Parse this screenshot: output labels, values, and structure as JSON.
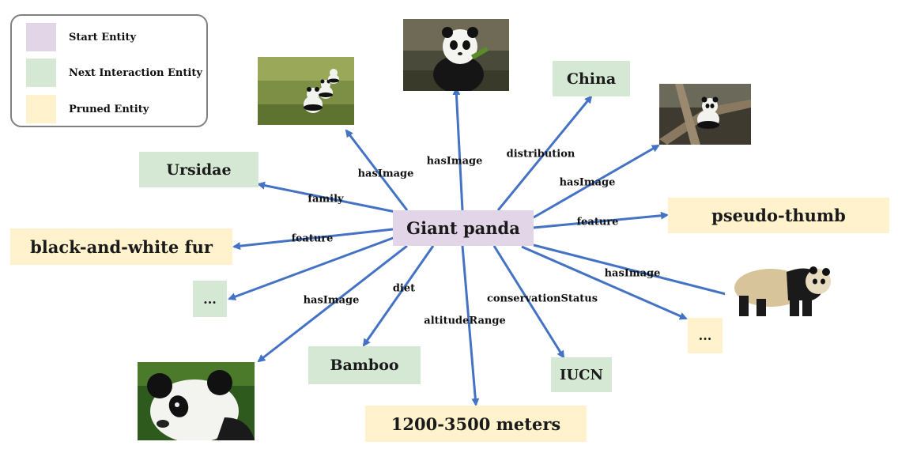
{
  "legend": {
    "items": [
      {
        "label": "Start Entity",
        "color": "#e1d5e7"
      },
      {
        "label": "Next Interaction Entity",
        "color": "#d5e8d4"
      },
      {
        "label": "Pruned Entity",
        "color": "#fff2cc"
      }
    ]
  },
  "nodes": {
    "center": "Giant panda",
    "ursidae": "Ursidae",
    "china": "China",
    "fur": "black-and-white fur",
    "thumb": "pseudo-thumb",
    "ellipsis_left": "...",
    "ellipsis_right": "...",
    "bamboo": "Bamboo",
    "iucn": "IUCN",
    "altitude": "1200-3500 meters"
  },
  "edges": {
    "family": "family",
    "feature_left": "feature",
    "feature_right": "feature",
    "has_image_topleft": "hasImage",
    "has_image_top": "hasImage",
    "distribution": "distribution",
    "has_image_topright": "hasImage",
    "has_image_right": "hasImage",
    "has_image_bottomleft": "hasImage",
    "diet": "diet",
    "altitude_range": "altitudeRange",
    "conservation_status": "conservationStatus"
  },
  "colors": {
    "arrow": "#4472c4",
    "start": "#e1d5e7",
    "next": "#d5e8d4",
    "pruned": "#fff2cc"
  }
}
